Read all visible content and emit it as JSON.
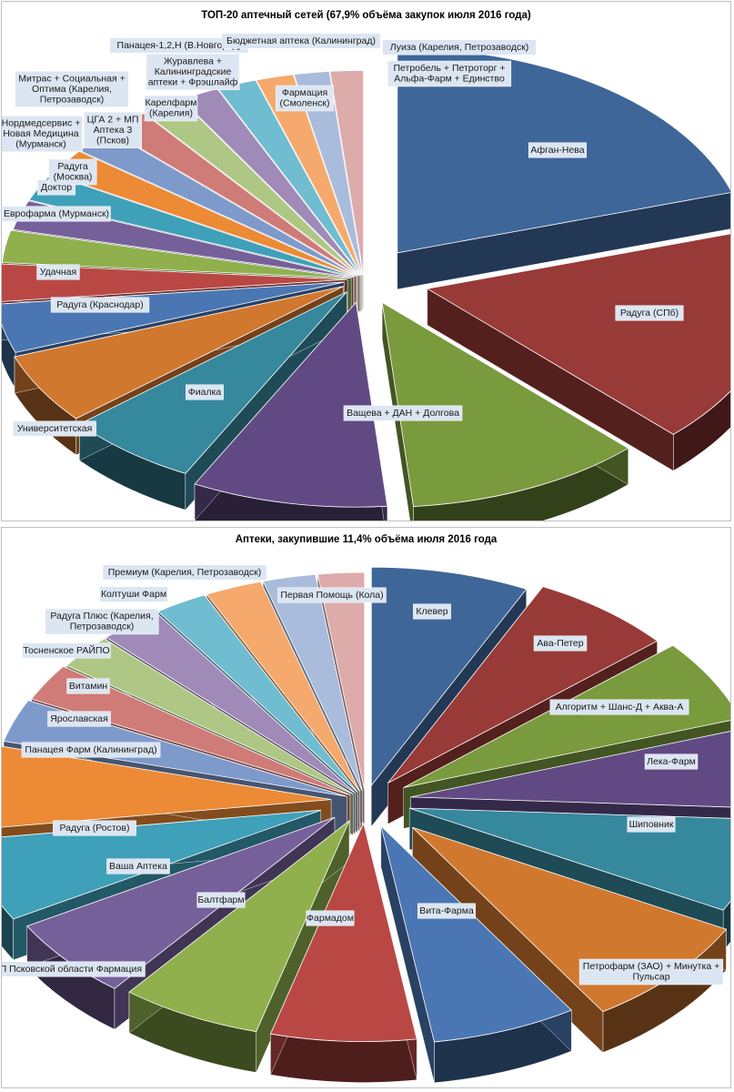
{
  "chart_data": [
    {
      "type": "pie",
      "title": "ТОП-20 аптечный сетей (67,9% объёма закупок июля 2016 года)",
      "categories": [
        "Афган-Нева",
        "Радуга (СПб)",
        "Ващева + ДАН + Долгова",
        "Фиалка",
        "Университетская",
        "Радуга (Краснодар)",
        "Удачная",
        "Еврофарма (Мурманск)",
        "Доктор",
        "Радуга (Москва)",
        "ЦГА 2 + МП Аптека 3 (Псков)",
        "Нордмедсервис + Новая Медицина (Мурманск)",
        "Митрас + Социальная + Оптима (Карелия, Петрозаводск)",
        "Карелфарм (Карелия)",
        "Панацея-1,2,Н (В.Новгород)",
        "Журавлева + Калининградские аптеки + Фрэшлайф",
        "Бюджетная аптека (Калининград)",
        "Фармация (Смоленск)",
        "Луиза (Карелия, Петрозаводск)",
        "Петробель + Петроторг + Альфа-Фарм + Единство"
      ],
      "values": [
        19.9,
        17.1,
        10.8,
        8.9,
        6.1,
        5.5,
        3.8,
        2.9,
        2.5,
        2.3,
        2.2,
        2.1,
        2.0,
        2.0,
        1.9,
        1.8,
        1.8,
        1.7,
        1.6,
        1.5
      ],
      "colors": [
        "#3f6699",
        "#983a37",
        "#7a9a3e",
        "#614a84",
        "#36889d",
        "#d1782f",
        "#4a77b4",
        "#b94845",
        "#8fb04c",
        "#76609a",
        "#3fa0b9",
        "#ec8a36",
        "#7d9acb",
        "#cf7b78",
        "#afc784",
        "#9f8ab8",
        "#70bcd1",
        "#f6a96c",
        "#a9bcdc",
        "#ddabaa"
      ],
      "labels": [
        {
          "text": "Афган-Нева"
        },
        {
          "text": "Радуга (СПб)"
        },
        {
          "text": "Ващева + ДАН + Долгова"
        },
        {
          "text": "Фиалка"
        },
        {
          "text": "Университетская"
        },
        {
          "text": "Радуга (Краснодар)"
        },
        {
          "text": "Удачная"
        },
        {
          "text": "Еврофарма (Мурманск)"
        },
        {
          "text": "Доктор"
        },
        {
          "text": "Радуга\n(Москва)"
        },
        {
          "text": "ЦГА 2 + МП\nАптека 3\n(Псков)"
        },
        {
          "text": "Нордмедсервис +\nНовая Медицина\n(Мурманск)"
        },
        {
          "text": "Митрас + Социальная +\nОптима (Карелия,\nПетрозаводск)"
        },
        {
          "text": "Карелфарм\n(Карелия)"
        },
        {
          "text": "Панацея-1,2,Н (В.Новгород)"
        },
        {
          "text": "Журавлева +\nКалининградские\nаптеки + Фрэшлайф"
        },
        {
          "text": "Бюджетная аптека (Калининград)"
        },
        {
          "text": "Фармация\n(Смоленск)"
        },
        {
          "text": "Луиза (Карелия, Петрозаводск)"
        },
        {
          "text": "Петробель + Петроторг +\nАльфа-Фарм + Единство"
        }
      ]
    },
    {
      "type": "pie",
      "title": "Аптеки, закупившие 11,4% объёма июля 2016 года",
      "categories": [
        "Клевер",
        "Ава-Петер",
        "Алгоритм + Шанс-Д + Аква-А",
        "Лека-Фарм",
        "Шиповник",
        "Петрофарм (ЗАО) + Минутка + Пульсар",
        "Вита-Фарма",
        "Фармадом",
        "Балтфарм",
        "Ваша Аптека",
        "ГП Псковской области Фармация",
        "Радуга (Ростов)",
        "Панацея Фарм (Калининград)",
        "Ярославская",
        "Витамин",
        "Тосненское РАЙПО",
        "Радуга Плюс (Карелия, Петрозаводск)",
        "Колтуши Фарм",
        "Премиум (Карелия, Петрозаводск)",
        "Первая Помощь (Кола)"
      ],
      "values": [
        7.5,
        6.8,
        6.4,
        6.2,
        7.2,
        8.6,
        6.9,
        6.9,
        6.7,
        6.3,
        6.4,
        6.5,
        3.3,
        2.9,
        2.7,
        3.0,
        2.5,
        2.7,
        2.5,
        2.2
      ],
      "colors": [
        "#3f6699",
        "#983a37",
        "#7a9a3e",
        "#614a84",
        "#36889d",
        "#d1782f",
        "#4a77b4",
        "#b94845",
        "#8fb04c",
        "#76609a",
        "#3fa0b9",
        "#ec8a36",
        "#7d9acb",
        "#cf7b78",
        "#afc784",
        "#9f8ab8",
        "#70bcd1",
        "#f6a96c",
        "#a9bcdc",
        "#ddabaa"
      ],
      "labels": [
        {
          "text": "Клевер"
        },
        {
          "text": "Ава-Петер"
        },
        {
          "text": "Алгоритм + Шанс-Д + Аква-А"
        },
        {
          "text": "Лека-Фарм"
        },
        {
          "text": "Шиповник"
        },
        {
          "text": "Петрофарм (ЗАО) + Минутка +\nПульсар"
        },
        {
          "text": "Вита-Фарма"
        },
        {
          "text": "Фармадом"
        },
        {
          "text": "Балтфарм"
        },
        {
          "text": "Ваша Аптека"
        },
        {
          "text": "ГП Псковской области Фармация"
        },
        {
          "text": "Радуга (Ростов)"
        },
        {
          "text": "Панацея Фарм (Калининград)"
        },
        {
          "text": "Ярославская"
        },
        {
          "text": "Витамин"
        },
        {
          "text": "Тосненское РАЙПО"
        },
        {
          "text": "Радуга Плюс (Карелия,\nПетрозаводск)"
        },
        {
          "text": "Колтуши Фарм"
        },
        {
          "text": "Премиум (Карелия, Петрозаводск)"
        },
        {
          "text": "Первая Помощь (Кола)"
        }
      ]
    }
  ]
}
